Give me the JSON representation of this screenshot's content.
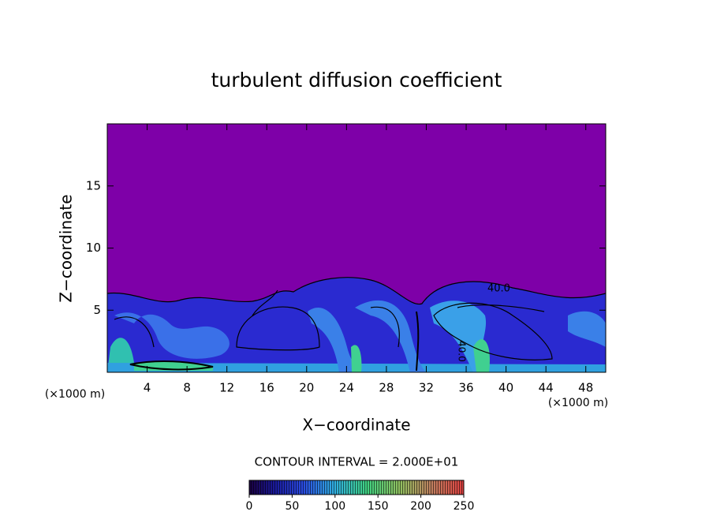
{
  "chart_data": {
    "type": "heatmap",
    "title": "turbulent diffusion coefficient",
    "x_label": "X−coordinate",
    "y_label": "Z−coordinate",
    "x_unit_left": "(×1000 m)",
    "x_unit_right": "(×1000 m)",
    "xlim": [
      0,
      50
    ],
    "ylim": [
      0,
      20
    ],
    "xticks": [
      4,
      8,
      12,
      16,
      20,
      24,
      28,
      32,
      36,
      40,
      44,
      48
    ],
    "yticks": [
      5,
      10,
      15
    ],
    "contour_note": "CONTOUR INTERVAL = 2.000E+01",
    "contour_labels": [
      "40.0",
      "40.0"
    ],
    "colorbar": {
      "lim": [
        0,
        250
      ],
      "ticks": [
        0,
        50,
        100,
        150,
        200,
        250
      ]
    }
  }
}
